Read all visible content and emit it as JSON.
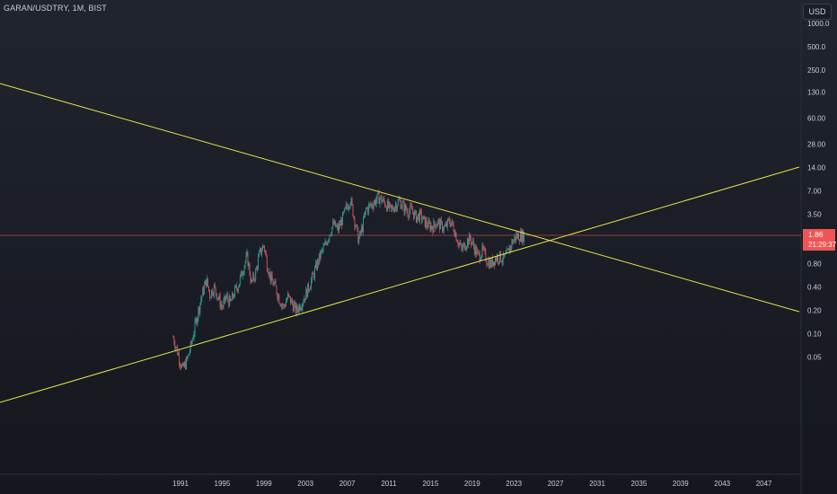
{
  "header": {
    "symbol_title": "GARAN/USDTRY, 1M, BIST",
    "currency_label": "USD"
  },
  "price_badge": {
    "price": "1.86",
    "countdown": "21:29:37"
  },
  "colors": {
    "background": "#1a1d25",
    "trendline": "#e6e64a",
    "price_line": "#f05454",
    "candle_up": "#2ba39a",
    "candle_down": "#d9525c"
  },
  "chart_data": {
    "type": "line",
    "title": "",
    "scale": "log",
    "y_ticks": [
      "1000.0",
      "500.0",
      "250.0",
      "130.0",
      "60.00",
      "28.00",
      "14.00",
      "7.00",
      "3.50",
      "1.86",
      "0.80",
      "0.40",
      "0.20",
      "0.10",
      "0.05"
    ],
    "x_ticks": [
      "1991",
      "1995",
      "1999",
      "2003",
      "2007",
      "2011",
      "2015",
      "2019",
      "2023",
      "2027",
      "2031",
      "2035",
      "2039",
      "2043",
      "2047"
    ],
    "current_price": 1.86,
    "series": [
      {
        "x": [
          1990.3,
          1990.7,
          1991.2,
          1991.6,
          1992.0,
          1992.5,
          1993.0,
          1993.5,
          1993.8,
          1994.2,
          1994.6,
          1995.0,
          1995.4,
          1995.8,
          1996.2,
          1996.6,
          1997.0,
          1997.4,
          1997.8,
          1998.2,
          1998.6,
          1999.0,
          1999.3,
          1999.7,
          2000.1,
          2000.5,
          2000.9,
          2001.3,
          2001.7,
          2002.1,
          2002.5,
          2002.9,
          2003.3,
          2003.7,
          2004.1,
          2004.5,
          2004.9,
          2005.3,
          2005.7,
          2006.1,
          2006.5,
          2006.9,
          2007.3,
          2007.7,
          2008.1,
          2008.5,
          2008.8,
          2009.2,
          2009.6,
          2010.0,
          2010.4,
          2010.8,
          2011.2,
          2011.6,
          2012.0,
          2012.4,
          2012.8,
          2013.2,
          2013.6,
          2014.0,
          2014.4,
          2014.8,
          2015.2,
          2015.6,
          2016.0,
          2016.4,
          2016.8,
          2017.2,
          2017.6,
          2018.0,
          2018.4,
          2018.8,
          2019.2,
          2019.6,
          2020.0,
          2020.4,
          2020.8,
          2021.2,
          2021.6,
          2022.0,
          2022.4,
          2022.8,
          2023.2,
          2023.6,
          2024.0
        ],
        "close": [
          0.09,
          0.06,
          0.035,
          0.045,
          0.07,
          0.15,
          0.3,
          0.5,
          0.32,
          0.4,
          0.3,
          0.22,
          0.3,
          0.25,
          0.35,
          0.45,
          0.7,
          1.0,
          0.45,
          0.6,
          1.1,
          1.4,
          0.8,
          0.5,
          0.4,
          0.28,
          0.22,
          0.3,
          0.25,
          0.2,
          0.24,
          0.3,
          0.4,
          0.55,
          0.8,
          1.1,
          1.4,
          2.0,
          2.6,
          2.2,
          3.0,
          4.2,
          5.5,
          3.0,
          1.6,
          2.5,
          4.0,
          4.5,
          5.0,
          5.8,
          5.2,
          4.6,
          3.9,
          4.6,
          5.2,
          4.4,
          3.8,
          4.0,
          3.2,
          3.4,
          2.8,
          2.5,
          2.4,
          2.8,
          2.5,
          2.3,
          2.9,
          2.4,
          1.6,
          1.2,
          1.5,
          1.7,
          1.3,
          1.0,
          1.2,
          0.9,
          0.8,
          0.95,
          1.0,
          0.9,
          1.1,
          1.5,
          1.8,
          1.86,
          1.86
        ]
      }
    ]
  }
}
